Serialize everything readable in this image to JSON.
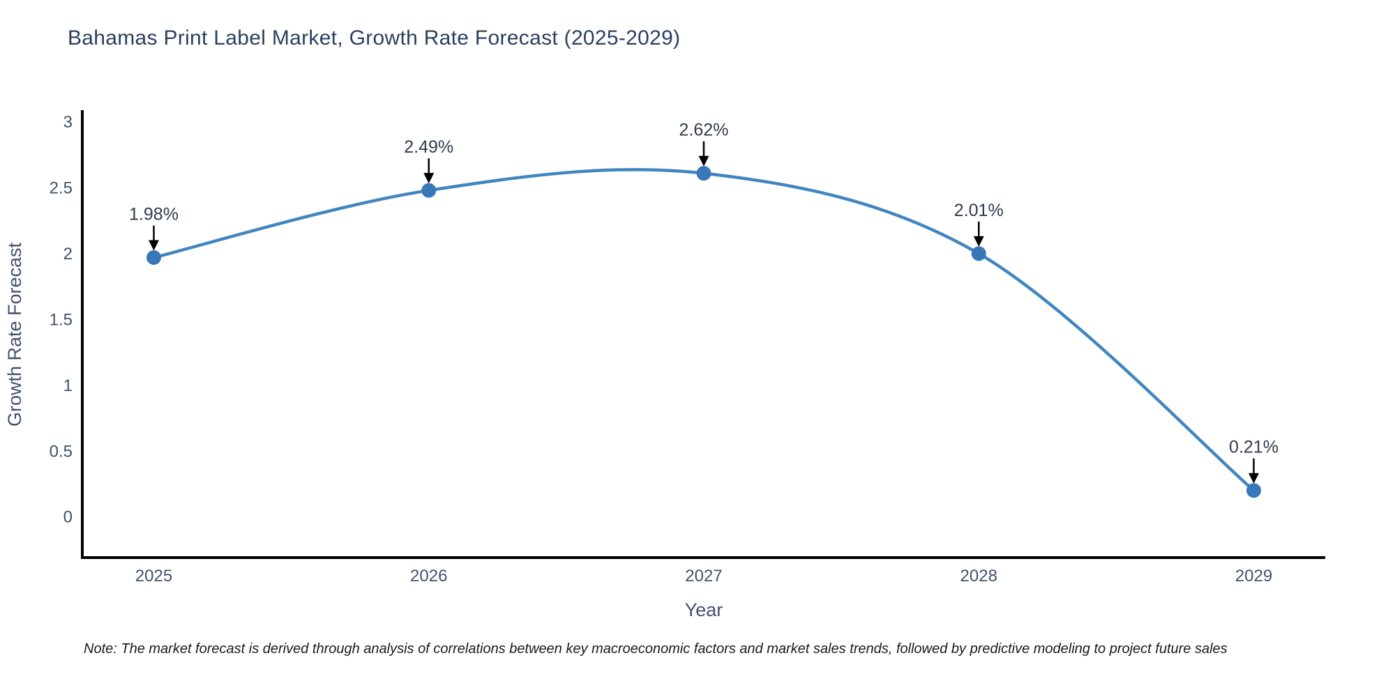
{
  "title": {
    "text": "Bahamas Print Label Market, Growth Rate Forecast (2025-2029)",
    "color": "#2a3f5f"
  },
  "note": {
    "text": "Note: The market forecast is derived through analysis of correlations between key macroeconomic factors and market sales trends, followed by predictive modeling to project future sales"
  },
  "chart_data": {
    "type": "line",
    "line_shape": "spline",
    "title": "Bahamas Print Label Market, Growth Rate Forecast (2025-2029)",
    "xlabel": "Year",
    "ylabel": "Growth Rate Forecast",
    "x": [
      2025,
      2026,
      2027,
      2028,
      2029
    ],
    "categories": [
      "2025",
      "2026",
      "2027",
      "2028",
      "2029"
    ],
    "series": [
      {
        "name": "Growth Rate Forecast",
        "values": [
          1.98,
          2.49,
          2.62,
          2.01,
          0.21
        ]
      }
    ],
    "point_labels": [
      "1.98%",
      "2.49%",
      "2.62%",
      "2.01%",
      "0.21%"
    ],
    "xticks": {
      "values": [
        2025,
        2026,
        2027,
        2028,
        2029
      ],
      "labels": [
        "2025",
        "2026",
        "2027",
        "2028",
        "2029"
      ]
    },
    "yticks": {
      "values": [
        0,
        0.5,
        1,
        1.5,
        2,
        2.5,
        3
      ],
      "labels": [
        "0",
        "0.5",
        "1",
        "1.5",
        "2",
        "2.5",
        "3"
      ]
    },
    "xlim": [
      2024.74,
      2029.26
    ],
    "ylim": [
      -0.3,
      3.1
    ],
    "grid": false,
    "legend": "none",
    "colors": {
      "line": "#4186c0",
      "marker": "#3878b8",
      "axis": "#000000",
      "tick_text": "#42516d",
      "axis_title_text": "#42516d",
      "annotation_text": "#2f3b4c",
      "annotation_arrow": "#000000"
    }
  }
}
